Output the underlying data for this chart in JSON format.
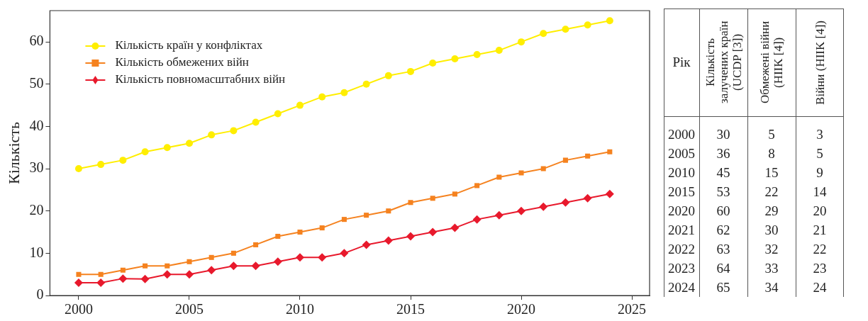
{
  "chart_data": [
    {
      "type": "line",
      "ylabel": "Кількість",
      "x": [
        2000,
        2001,
        2002,
        2003,
        2004,
        2005,
        2006,
        2007,
        2008,
        2009,
        2010,
        2011,
        2012,
        2013,
        2014,
        2015,
        2016,
        2017,
        2018,
        2019,
        2020,
        2021,
        2022,
        2023,
        2024
      ],
      "xlim": [
        1998.7,
        2025.8
      ],
      "xticks": [
        2000,
        2005,
        2010,
        2015,
        2020,
        2025
      ],
      "ylim": [
        0,
        67.4
      ],
      "yticks": [
        0,
        10,
        20,
        30,
        40,
        50,
        60
      ],
      "grid": false,
      "legend": "top left",
      "line_style": "solid",
      "series": [
        {
          "name": "Кількість країн у конфліктах",
          "color": "#ffee00",
          "marker": "circle",
          "values": [
            30,
            31,
            32,
            34,
            35,
            36,
            38,
            39,
            41,
            43,
            45,
            47,
            48,
            50,
            52,
            53,
            55,
            56,
            57,
            58,
            60,
            62,
            63,
            64,
            65
          ]
        },
        {
          "name": "Кількість обмежених війн",
          "color": "#f5821f",
          "marker": "square",
          "values": [
            5,
            5,
            6,
            7,
            7,
            8,
            9,
            10,
            12,
            14,
            15,
            16,
            18,
            19,
            20,
            22,
            23,
            24,
            26,
            28,
            29,
            30,
            32,
            33,
            34
          ]
        },
        {
          "name": "Кількість повномасштабних війн",
          "color": "#e8192c",
          "marker": "diamond",
          "values": [
            3,
            3,
            4,
            3.9,
            5,
            5,
            6,
            7,
            7,
            8,
            9,
            9,
            10,
            12,
            13,
            14,
            15,
            16,
            18,
            19,
            20,
            21,
            22,
            23,
            24
          ]
        }
      ]
    },
    {
      "type": "heatmap",
      "ylabel": "Рік",
      "data_labels": true,
      "categories": [
        "Кількість залучених країн (UCDP [3])",
        "Обмежені війни (HIIK [4])",
        "Війни (HIIK [4])"
      ],
      "y_categories": [
        "2000",
        "2005",
        "2010",
        "2015",
        "2020",
        "2021",
        "2022",
        "2023",
        "2024"
      ],
      "cells": [
        [
          30,
          5,
          3
        ],
        [
          36,
          8,
          5
        ],
        [
          45,
          15,
          9
        ],
        [
          53,
          22,
          14
        ],
        [
          60,
          29,
          20
        ],
        [
          62,
          30,
          21
        ],
        [
          63,
          32,
          22
        ],
        [
          64,
          33,
          23
        ],
        [
          65,
          34,
          24
        ]
      ]
    }
  ]
}
